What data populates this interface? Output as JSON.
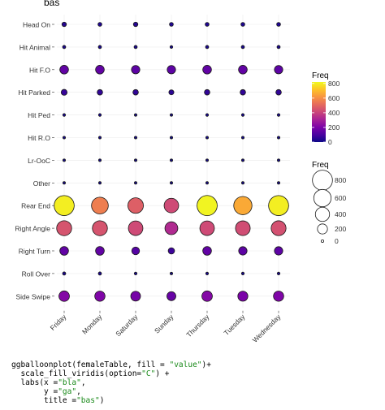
{
  "chart_data": {
    "type": "balloon",
    "title": "bas",
    "xlabel": "",
    "ylabel": "",
    "x_categories": [
      "Friday",
      "Monday",
      "Saturday",
      "Sunday",
      "Thursday",
      "Tuesday",
      "Wednesday"
    ],
    "y_categories": [
      "Head On",
      "Hit Animal",
      "Hit F.O",
      "Hit Parked",
      "Hit Ped",
      "Hit R.O",
      "Lr-OoC",
      "Other",
      "Rear End",
      "Right Angle",
      "Right Turn",
      "Roll Over",
      "Side Swipe"
    ],
    "values": [
      [
        40,
        30,
        40,
        30,
        30,
        30,
        30
      ],
      [
        20,
        20,
        20,
        15,
        20,
        20,
        20
      ],
      [
        150,
        150,
        140,
        140,
        150,
        150,
        140
      ],
      [
        70,
        60,
        60,
        50,
        60,
        60,
        60
      ],
      [
        15,
        15,
        10,
        10,
        15,
        15,
        15
      ],
      [
        10,
        10,
        10,
        5,
        10,
        10,
        10
      ],
      [
        10,
        10,
        5,
        5,
        10,
        10,
        5
      ],
      [
        10,
        10,
        10,
        10,
        10,
        10,
        10
      ],
      [
        800,
        560,
        480,
        420,
        810,
        660,
        800
      ],
      [
        450,
        450,
        420,
        330,
        420,
        430,
        440
      ],
      [
        150,
        150,
        120,
        80,
        150,
        140,
        140
      ],
      [
        20,
        20,
        15,
        10,
        15,
        15,
        15
      ],
      [
        220,
        210,
        190,
        160,
        220,
        200,
        210
      ]
    ],
    "color_legend": {
      "title": "Freq",
      "ticks": [
        "800",
        "600",
        "400",
        "200",
        "0"
      ],
      "range": [
        0,
        820
      ],
      "palette": "plasma"
    },
    "size_legend": {
      "title": "Freq",
      "ticks": [
        "800",
        "600",
        "400",
        "200",
        "0"
      ]
    },
    "grid": true
  },
  "code": {
    "line1_a": "ggballoonplot(femaleTable, fill = ",
    "line1_s": "\"value\"",
    "line1_b": ")+",
    "line2_a": "  scale_fill_viridis(option=",
    "line2_s": "\"C\"",
    "line2_b": ") +",
    "line3_a": "  labs(x =",
    "line3_s": "\"bla\"",
    "line3_b": ",",
    "line4_a": "       y =",
    "line4_s": "\"ga\"",
    "line4_b": ",",
    "line5_a": "       title =",
    "line5_s": "\"bas\"",
    "line5_b": ")"
  }
}
